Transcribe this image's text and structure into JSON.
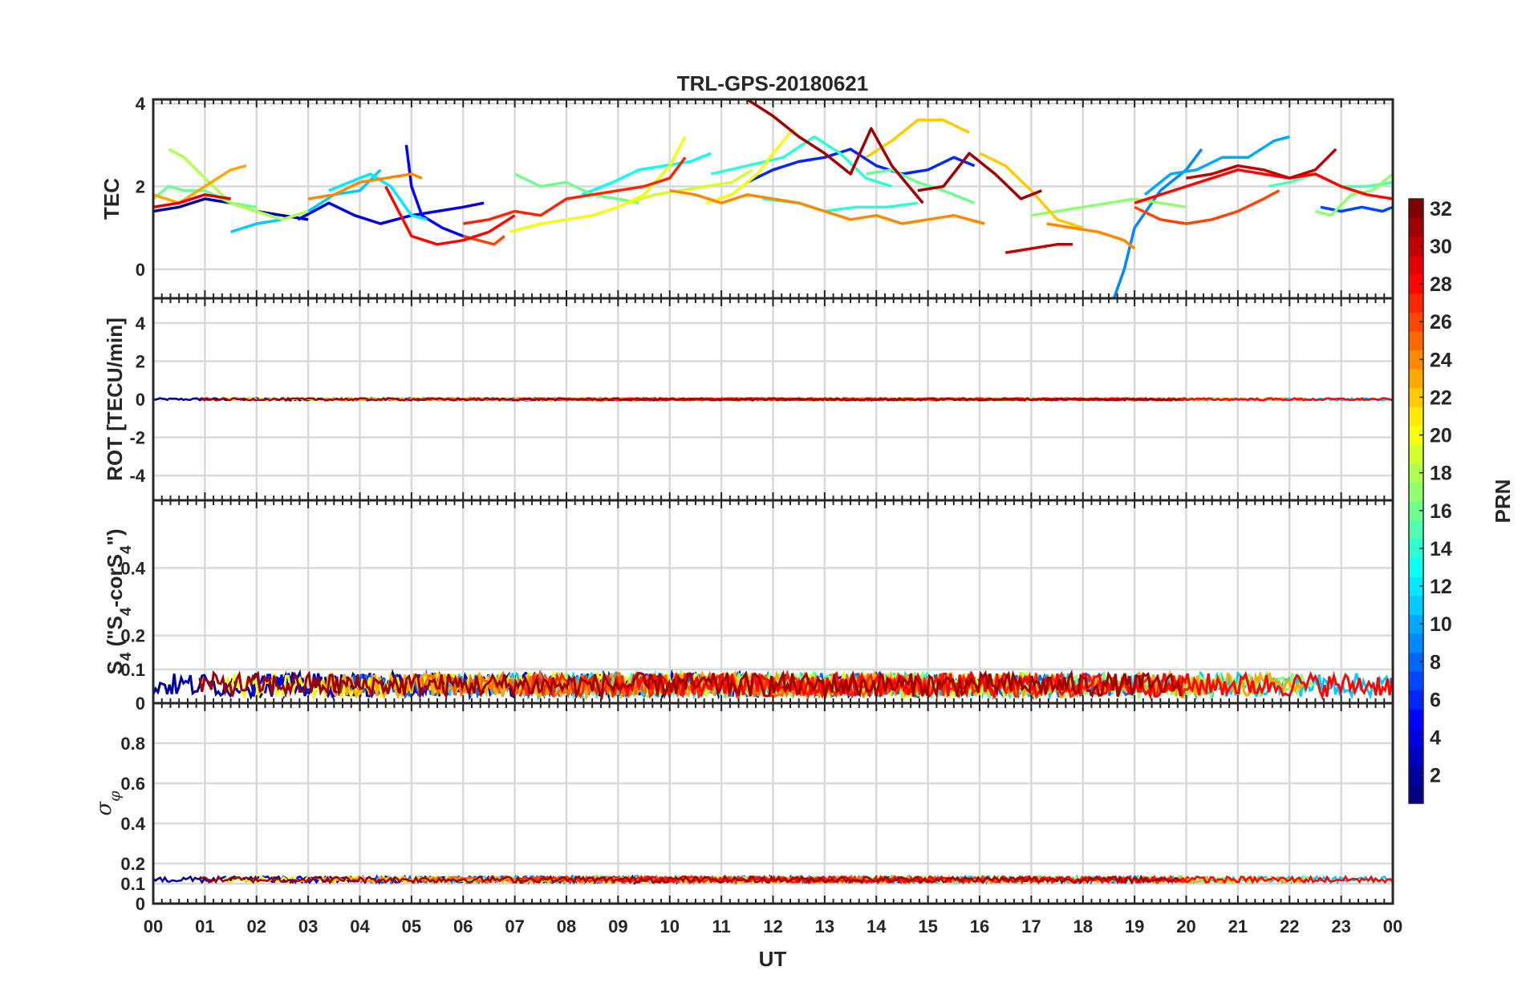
{
  "chart_data": {
    "type": "line",
    "title": "TRL-GPS-20180621",
    "xlabel": "UT",
    "x_tick_labels": [
      "00",
      "01",
      "02",
      "03",
      "04",
      "05",
      "06",
      "07",
      "08",
      "09",
      "10",
      "11",
      "12",
      "13",
      "14",
      "15",
      "16",
      "17",
      "18",
      "19",
      "20",
      "21",
      "22",
      "23",
      "00"
    ],
    "xlim": [
      0,
      24
    ],
    "grid": true,
    "colorbar": {
      "label": "PRN",
      "range": [
        1,
        32
      ],
      "tick_labels": [
        "2",
        "4",
        "6",
        "8",
        "10",
        "12",
        "14",
        "16",
        "18",
        "20",
        "22",
        "24",
        "26",
        "28",
        "30",
        "32"
      ],
      "colormap": "jet",
      "placement": "right"
    },
    "panels": [
      {
        "id": "tec",
        "ylabel": "TEC",
        "ylim": [
          -0.7,
          4.1
        ],
        "y_ticks": [
          0,
          2,
          4
        ],
        "y_tick_labels": [
          "0",
          "2",
          "4"
        ],
        "series": [
          {
            "prn": 2,
            "x": [
              0.0,
              0.5,
              1.0,
              1.5,
              2.0,
              2.5,
              3.0
            ],
            "y": [
              1.4,
              1.5,
              1.7,
              1.6,
              1.4,
              1.3,
              1.2
            ]
          },
          {
            "prn": 4,
            "x": [
              2.8,
              3.4,
              3.9,
              4.4,
              5.0,
              5.5,
              6.0,
              6.4
            ],
            "y": [
              1.2,
              1.6,
              1.3,
              1.1,
              1.3,
              1.4,
              1.5,
              1.6
            ]
          },
          {
            "prn": 5,
            "x": [
              4.9,
              5.0,
              5.2,
              5.6,
              6.0,
              6.3
            ],
            "y": [
              3.0,
              2.0,
              1.3,
              1.0,
              0.8,
              0.7
            ]
          },
          {
            "prn": 6,
            "x": [
              11.5,
              12.0,
              12.5,
              13.0,
              13.5,
              14.0,
              14.5,
              15.0,
              15.5,
              15.9
            ],
            "y": [
              2.1,
              2.4,
              2.6,
              2.7,
              2.9,
              2.5,
              2.3,
              2.4,
              2.7,
              2.5
            ]
          },
          {
            "prn": 7,
            "x": [
              22.6,
              23.0,
              23.4,
              23.8,
              24.0
            ],
            "y": [
              1.5,
              1.4,
              1.5,
              1.4,
              1.5
            ]
          },
          {
            "prn": 9,
            "x": [
              18.6,
              18.8,
              19.0,
              19.5,
              20.0,
              20.3
            ],
            "y": [
              -0.7,
              0.0,
              1.0,
              1.9,
              2.4,
              2.9
            ]
          },
          {
            "prn": 10,
            "x": [
              19.2,
              19.7,
              20.2,
              20.7,
              21.2,
              21.7,
              22.0
            ],
            "y": [
              1.8,
              2.3,
              2.4,
              2.7,
              2.7,
              3.1,
              3.2
            ]
          },
          {
            "prn": 11,
            "x": [
              1.5,
              2.0,
              2.5,
              3.0,
              3.5,
              4.0,
              4.4
            ],
            "y": [
              0.9,
              1.1,
              1.2,
              1.4,
              1.8,
              1.9,
              2.4
            ]
          },
          {
            "prn": 12,
            "x": [
              3.4,
              3.8,
              4.2,
              4.6,
              5.0,
              5.3
            ],
            "y": [
              1.9,
              2.1,
              2.3,
              2.0,
              1.3,
              1.2
            ]
          },
          {
            "prn": 13,
            "x": [
              8.3,
              8.9,
              9.4,
              9.9,
              10.4,
              10.8
            ],
            "y": [
              1.8,
              2.1,
              2.4,
              2.5,
              2.6,
              2.8
            ]
          },
          {
            "prn": 14,
            "x": [
              10.8,
              11.5,
              12.2,
              12.8,
              13.3,
              13.8,
              14.3
            ],
            "y": [
              2.3,
              2.5,
              2.7,
              3.2,
              2.8,
              2.2,
              2.0
            ]
          },
          {
            "prn": 14,
            "x": [
              11.8,
              12.5,
              13.0,
              13.6,
              14.2,
              14.8
            ],
            "y": [
              1.7,
              1.6,
              1.4,
              1.5,
              1.5,
              1.6
            ]
          },
          {
            "prn": 15,
            "x": [
              21.6,
              22.0,
              22.5,
              23.0,
              23.5,
              24.0
            ],
            "y": [
              2.0,
              2.1,
              2.3,
              2.0,
              2.0,
              2.1
            ]
          },
          {
            "prn": 16,
            "x": [
              0.0,
              0.3,
              0.6,
              1.0,
              1.5,
              2.0
            ],
            "y": [
              1.7,
              2.0,
              1.9,
              1.9,
              1.6,
              1.5
            ]
          },
          {
            "prn": 16,
            "x": [
              7.0,
              7.5,
              8.0,
              8.5,
              9.0,
              9.4
            ],
            "y": [
              2.3,
              2.0,
              2.1,
              1.8,
              1.7,
              1.6
            ]
          },
          {
            "prn": 16,
            "x": [
              13.8,
              14.3,
              14.8,
              15.3,
              15.9
            ],
            "y": [
              2.3,
              2.4,
              2.1,
              1.9,
              1.6
            ]
          },
          {
            "prn": 17,
            "x": [
              17.0,
              17.5,
              18.0,
              18.5,
              19.0,
              19.5,
              20.0
            ],
            "y": [
              1.3,
              1.4,
              1.5,
              1.6,
              1.7,
              1.6,
              1.5
            ]
          },
          {
            "prn": 17,
            "x": [
              22.5,
              22.8,
              23.2,
              23.6,
              24.0
            ],
            "y": [
              1.4,
              1.3,
              1.8,
              1.9,
              2.3
            ]
          },
          {
            "prn": 18,
            "x": [
              0.3,
              0.6,
              1.0,
              1.5,
              2.0,
              2.5,
              3.0
            ],
            "y": [
              2.9,
              2.7,
              2.2,
              1.6,
              1.4,
              1.2,
              1.4
            ]
          },
          {
            "prn": 19,
            "x": [
              9.2,
              9.7,
              10.2,
              10.7,
              11.2,
              11.6
            ],
            "y": [
              1.6,
              1.8,
              1.9,
              2.0,
              2.1,
              2.4
            ]
          },
          {
            "prn": 20,
            "x": [
              6.9,
              7.5,
              8.0,
              8.5,
              9.0,
              9.5,
              10.0,
              10.3
            ],
            "y": [
              0.9,
              1.1,
              1.2,
              1.3,
              1.5,
              1.8,
              2.5,
              3.2
            ]
          },
          {
            "prn": 20,
            "x": [
              10.7,
              11.2,
              11.7,
              12.0,
              12.4
            ],
            "y": [
              1.6,
              1.8,
              2.3,
              2.8,
              3.4
            ]
          },
          {
            "prn": 22,
            "x": [
              13.8,
              14.3,
              14.8,
              15.3,
              15.8
            ],
            "y": [
              2.7,
              3.1,
              3.6,
              3.6,
              3.3
            ]
          },
          {
            "prn": 22,
            "x": [
              16.0,
              16.5,
              17.0,
              17.5,
              18.0
            ],
            "y": [
              2.8,
              2.5,
              1.9,
              1.2,
              1.0
            ]
          },
          {
            "prn": 23,
            "x": [
              0.0,
              0.5,
              1.0,
              1.5,
              1.8
            ],
            "y": [
              1.8,
              1.6,
              2.0,
              2.4,
              2.5
            ]
          },
          {
            "prn": 24,
            "x": [
              3.0,
              3.5,
              4.0,
              4.5,
              5.0,
              5.2
            ],
            "y": [
              1.7,
              1.8,
              2.1,
              2.2,
              2.3,
              2.2
            ]
          },
          {
            "prn": 24,
            "x": [
              10.0,
              10.5,
              11.0,
              11.5,
              12.0,
              12.5,
              13.0,
              13.5,
              14.0,
              14.5,
              15.0,
              15.5,
              16.1
            ],
            "y": [
              1.9,
              1.8,
              1.6,
              1.8,
              1.7,
              1.6,
              1.4,
              1.2,
              1.3,
              1.1,
              1.2,
              1.3,
              1.1
            ]
          },
          {
            "prn": 24,
            "x": [
              17.3,
              17.8,
              18.3,
              18.8,
              19.0
            ],
            "y": [
              1.1,
              1.0,
              0.9,
              0.7,
              0.5
            ]
          },
          {
            "prn": 26,
            "x": [
              6.0,
              6.3,
              6.6,
              6.8
            ],
            "y": [
              0.8,
              0.7,
              0.6,
              0.8
            ]
          },
          {
            "prn": 26,
            "x": [
              19.0,
              19.5,
              20.0,
              20.5,
              21.0,
              21.5,
              21.8
            ],
            "y": [
              1.5,
              1.2,
              1.1,
              1.2,
              1.4,
              1.7,
              1.9
            ]
          },
          {
            "prn": 27,
            "x": [
              6.0,
              6.5,
              7.0,
              7.5,
              8.0,
              8.5,
              9.0,
              9.5,
              10.0,
              10.3
            ],
            "y": [
              1.1,
              1.2,
              1.4,
              1.3,
              1.7,
              1.8,
              1.9,
              2.0,
              2.2,
              2.7
            ]
          },
          {
            "prn": 28,
            "x": [
              4.5,
              5.0,
              5.5,
              6.0,
              6.5,
              7.0
            ],
            "y": [
              2.0,
              0.8,
              0.6,
              0.7,
              0.9,
              1.3
            ]
          },
          {
            "prn": 28,
            "x": [
              19.0,
              19.5,
              20.0,
              20.5,
              21.0,
              21.5,
              22.0,
              22.5,
              23.0,
              23.5,
              24.0
            ],
            "y": [
              1.6,
              1.8,
              2.0,
              2.2,
              2.4,
              2.3,
              2.2,
              2.3,
              2.0,
              1.8,
              1.7
            ]
          },
          {
            "prn": 29,
            "x": [
              0.0,
              0.5,
              1.0,
              1.5
            ],
            "y": [
              1.5,
              1.6,
              1.8,
              1.7
            ]
          },
          {
            "prn": 30,
            "x": [
              16.5,
              17.0,
              17.5,
              17.8
            ],
            "y": [
              0.4,
              0.5,
              0.6,
              0.6
            ]
          },
          {
            "prn": 30,
            "x": [
              20.0,
              20.5,
              21.0,
              21.5,
              22.0,
              22.5,
              22.9
            ],
            "y": [
              2.2,
              2.3,
              2.5,
              2.4,
              2.2,
              2.4,
              2.9
            ]
          },
          {
            "prn": 31,
            "x": [
              11.5,
              12.0,
              12.5,
              13.0,
              13.5,
              13.9,
              14.3,
              14.9
            ],
            "y": [
              4.1,
              3.7,
              3.2,
              2.8,
              2.3,
              3.4,
              2.5,
              1.6
            ]
          },
          {
            "prn": 31,
            "x": [
              14.8,
              15.3,
              15.8,
              16.3,
              16.8,
              17.2
            ],
            "y": [
              1.9,
              2.0,
              2.8,
              2.3,
              1.7,
              1.9
            ]
          }
        ]
      },
      {
        "id": "rot",
        "ylabel": "ROT [TECU/min]",
        "ylim": [
          -5.3,
          5.3
        ],
        "y_ticks": [
          -4,
          -2,
          0,
          2,
          4
        ],
        "y_tick_labels": [
          "-4",
          "-2",
          "0",
          "2",
          "4"
        ],
        "baseline": 0.0,
        "amplitude": 0.12
      },
      {
        "id": "s4",
        "ylabel": "S4 (\"S4-corS4\")",
        "ylim": [
          0,
          0.6
        ],
        "y_ticks": [
          0,
          0.1,
          0.2,
          0.4
        ],
        "y_tick_labels": [
          "0",
          "0.1",
          "0.2",
          "0.4"
        ],
        "baseline": 0.04,
        "amplitude": 0.07
      },
      {
        "id": "sigma",
        "ylabel": "σφ",
        "ylim": [
          0,
          1.0
        ],
        "y_ticks": [
          0,
          0.1,
          0.2,
          0.4,
          0.6,
          0.8
        ],
        "y_tick_labels": [
          "0",
          "0.1",
          "0.2",
          "0.4",
          "0.6",
          "0.8"
        ],
        "baseline": 0.12,
        "amplitude": 0.03
      }
    ]
  }
}
